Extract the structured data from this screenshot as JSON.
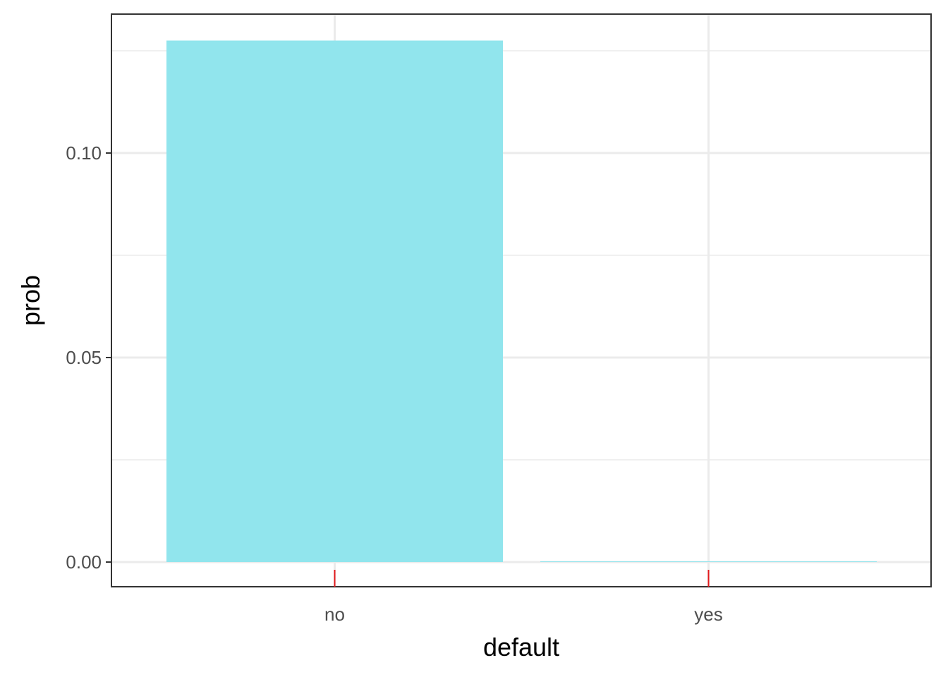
{
  "chart_data": {
    "type": "bar",
    "categories": [
      "no",
      "yes"
    ],
    "values": [
      0.1275,
      0.0
    ],
    "xlabel": "default",
    "ylabel": "prob",
    "yticks": [
      "0.00",
      "0.05",
      "0.10"
    ],
    "ylim": [
      -0.006,
      0.132
    ],
    "grid": true,
    "legend": "none",
    "colors": {
      "bar": "#91E5ED",
      "panel_border": "#333333",
      "grid": "#ebebeb",
      "x_tick": "#e31a1c",
      "y_tick": "#333333"
    }
  }
}
